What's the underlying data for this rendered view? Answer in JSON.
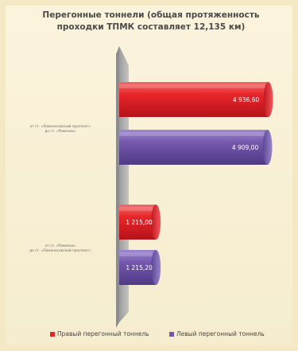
{
  "chart_data": {
    "type": "bar",
    "orientation": "horizontal",
    "title": "Перегонные тоннели (общая протяженность проходки ТПМК составляет 12,135 км)",
    "categories": [
      "от ст. «Ломоносовский проспект» до ст. «Раменки»",
      "от ст. «Раменки» до ст. «Ломоносовский проспект»"
    ],
    "category_display": [
      [
        "от ст. «Ломоносовский проспект»",
        "до ст. «Раменки»"
      ],
      [
        "от ст. «Раменки»",
        "до ст. «Ломоносовский проспект»"
      ]
    ],
    "series": [
      {
        "name": "Правый перегонный тоннель",
        "values": [
          4936.6,
          1215.0
        ],
        "labels": [
          "4 936,60",
          "1 215,00"
        ],
        "color": "#e5262b"
      },
      {
        "name": "Левый перегонный тоннель",
        "values": [
          4909.0,
          1215.2
        ],
        "labels": [
          "4 909,00",
          "1 215,20"
        ],
        "color": "#7157a8"
      }
    ],
    "xlim": [
      0,
      5000
    ],
    "grid": false,
    "legend_position": "bottom"
  },
  "colors": {
    "title": "#4a4a4a",
    "wall": "#a8a8a8",
    "background": "#f8efd3"
  }
}
